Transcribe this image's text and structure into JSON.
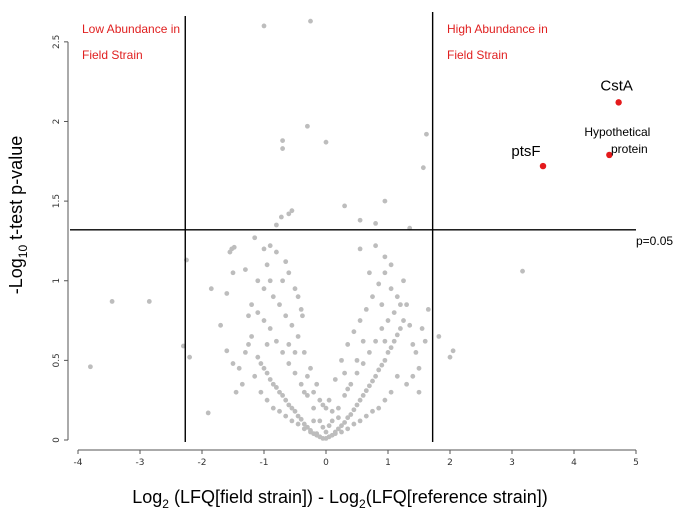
{
  "chart_data": {
    "type": "scatter",
    "title": "",
    "xlabel": {
      "prefix": "Log",
      "sub": "2",
      "mid": " (LFQ[field strain]) - Log",
      "sub2": "2",
      "suffix": "(LFQ[reference strain])"
    },
    "ylabel": {
      "prefix": "-Log",
      "sub": "10",
      "suffix": " t-test p-value"
    },
    "xlim": [
      -4,
      5
    ],
    "ylim": [
      0,
      2.7
    ],
    "xticks": [
      "-4",
      "-3",
      "-2",
      "-1",
      "0",
      "1",
      "2",
      "3",
      "4",
      "5"
    ],
    "yticks": [
      "0",
      "0.5",
      "1",
      "1.5",
      "2",
      "2.5"
    ],
    "grid": false,
    "colors": {
      "background_points": "#bdbdbd",
      "highlight_points": "#e41a1c",
      "region_text": "#e02020",
      "lines": "#000000"
    },
    "thresholds": {
      "x_low": -2.27,
      "x_high": 1.72,
      "y": 1.32,
      "y_label": "p=0.05"
    },
    "region_labels": {
      "low": [
        "Low Abundance in",
        "Field Strain"
      ],
      "high": [
        "High Abundance in",
        "Field Strain"
      ]
    },
    "highlighted": [
      {
        "label": "CstA",
        "x": 4.72,
        "y": 2.12
      },
      {
        "label": "ptsF",
        "x": 3.5,
        "y": 1.72
      },
      {
        "label": "Hypothetical protein",
        "lines": [
          "Hypothetical",
          "protein"
        ],
        "x": 4.57,
        "y": 1.79
      }
    ],
    "points": [
      [
        -1.0,
        2.6
      ],
      [
        -0.25,
        2.63
      ],
      [
        -0.3,
        1.97
      ],
      [
        -0.7,
        1.88
      ],
      [
        -0.7,
        1.83
      ],
      [
        0.0,
        1.87
      ],
      [
        0.95,
        1.5
      ],
      [
        0.3,
        1.47
      ],
      [
        1.57,
        1.71
      ],
      [
        1.62,
        1.92
      ],
      [
        -0.55,
        1.44
      ],
      [
        -0.72,
        1.4
      ],
      [
        -0.8,
        1.35
      ],
      [
        -0.6,
        1.42
      ],
      [
        0.55,
        1.38
      ],
      [
        0.8,
        1.36
      ],
      [
        1.35,
        1.33
      ],
      [
        3.17,
        1.06
      ],
      [
        -3.8,
        0.46
      ],
      [
        -3.45,
        0.87
      ],
      [
        -2.85,
        0.87
      ],
      [
        -2.3,
        0.59
      ],
      [
        -2.2,
        0.52
      ],
      [
        -2.25,
        1.13
      ],
      [
        2.0,
        0.52
      ],
      [
        2.05,
        0.56
      ],
      [
        1.82,
        0.65
      ],
      [
        1.65,
        0.82
      ],
      [
        -1.9,
        0.17
      ],
      [
        -1.5,
        0.48
      ],
      [
        -1.3,
        1.07
      ],
      [
        -1.5,
        1.05
      ],
      [
        -1.6,
        0.92
      ],
      [
        -1.7,
        0.72
      ],
      [
        -1.85,
        0.95
      ],
      [
        -1.6,
        0.56
      ],
      [
        -1.15,
        1.27
      ],
      [
        -1.0,
        1.2
      ],
      [
        -1.55,
        1.18
      ],
      [
        -1.52,
        1.2
      ],
      [
        -1.48,
        1.21
      ],
      [
        -0.9,
        1.22
      ],
      [
        -0.8,
        1.18
      ],
      [
        -0.65,
        1.12
      ],
      [
        -0.6,
        1.05
      ],
      [
        -0.5,
        0.95
      ],
      [
        -0.45,
        0.9
      ],
      [
        -0.4,
        0.82
      ],
      [
        -0.38,
        0.78
      ],
      [
        0.55,
        1.2
      ],
      [
        0.8,
        1.22
      ],
      [
        0.95,
        1.15
      ],
      [
        1.05,
        0.95
      ],
      [
        1.15,
        0.9
      ],
      [
        1.25,
        1.0
      ],
      [
        1.3,
        0.85
      ],
      [
        1.35,
        0.72
      ],
      [
        1.4,
        0.6
      ],
      [
        1.45,
        0.55
      ],
      [
        1.5,
        0.45
      ],
      [
        1.55,
        0.7
      ],
      [
        1.6,
        0.62
      ],
      [
        -1.2,
        0.65
      ],
      [
        -1.25,
        0.6
      ],
      [
        -1.3,
        0.55
      ],
      [
        -1.1,
        0.52
      ],
      [
        -1.05,
        0.48
      ],
      [
        -1.0,
        0.45
      ],
      [
        -0.95,
        0.42
      ],
      [
        -0.9,
        0.38
      ],
      [
        -0.85,
        0.35
      ],
      [
        -0.8,
        0.33
      ],
      [
        -0.75,
        0.3
      ],
      [
        -0.7,
        0.28
      ],
      [
        -0.65,
        0.25
      ],
      [
        -0.6,
        0.22
      ],
      [
        -0.55,
        0.2
      ],
      [
        -0.5,
        0.18
      ],
      [
        -0.45,
        0.15
      ],
      [
        -0.4,
        0.13
      ],
      [
        -0.35,
        0.1
      ],
      [
        -0.3,
        0.08
      ],
      [
        -0.25,
        0.06
      ],
      [
        -0.2,
        0.04
      ],
      [
        -0.15,
        0.03
      ],
      [
        -0.1,
        0.02
      ],
      [
        -0.05,
        0.01
      ],
      [
        0.0,
        0.01
      ],
      [
        0.05,
        0.02
      ],
      [
        0.1,
        0.03
      ],
      [
        0.15,
        0.05
      ],
      [
        0.2,
        0.07
      ],
      [
        0.25,
        0.09
      ],
      [
        0.3,
        0.11
      ],
      [
        0.35,
        0.14
      ],
      [
        0.4,
        0.16
      ],
      [
        0.45,
        0.19
      ],
      [
        0.5,
        0.22
      ],
      [
        0.55,
        0.25
      ],
      [
        0.6,
        0.28
      ],
      [
        0.65,
        0.31
      ],
      [
        0.7,
        0.34
      ],
      [
        0.75,
        0.37
      ],
      [
        0.8,
        0.4
      ],
      [
        0.85,
        0.44
      ],
      [
        0.9,
        0.47
      ],
      [
        0.95,
        0.5
      ],
      [
        1.0,
        0.55
      ],
      [
        1.05,
        0.58
      ],
      [
        1.1,
        0.62
      ],
      [
        1.15,
        0.66
      ],
      [
        1.2,
        0.7
      ],
      [
        -1.2,
        0.85
      ],
      [
        -1.1,
        0.8
      ],
      [
        -1.0,
        0.75
      ],
      [
        -0.9,
        0.7
      ],
      [
        -0.8,
        0.62
      ],
      [
        -0.7,
        0.55
      ],
      [
        -0.6,
        0.48
      ],
      [
        -0.5,
        0.42
      ],
      [
        -0.4,
        0.35
      ],
      [
        -0.3,
        0.28
      ],
      [
        -0.2,
        0.2
      ],
      [
        -0.1,
        0.12
      ],
      [
        0.1,
        0.12
      ],
      [
        0.2,
        0.2
      ],
      [
        0.3,
        0.28
      ],
      [
        0.4,
        0.35
      ],
      [
        0.5,
        0.42
      ],
      [
        0.6,
        0.48
      ],
      [
        0.7,
        0.55
      ],
      [
        0.8,
        0.62
      ],
      [
        0.9,
        0.7
      ],
      [
        1.0,
        0.75
      ],
      [
        1.1,
        0.8
      ],
      [
        1.2,
        0.85
      ],
      [
        -1.0,
        0.95
      ],
      [
        -0.9,
        1.0
      ],
      [
        -0.85,
        0.9
      ],
      [
        -0.75,
        0.85
      ],
      [
        -0.65,
        0.78
      ],
      [
        -0.55,
        0.72
      ],
      [
        -0.45,
        0.65
      ],
      [
        -0.35,
        0.55
      ],
      [
        -0.25,
        0.45
      ],
      [
        -0.15,
        0.35
      ],
      [
        -0.05,
        0.22
      ],
      [
        0.05,
        0.25
      ],
      [
        0.15,
        0.38
      ],
      [
        0.25,
        0.5
      ],
      [
        0.35,
        0.6
      ],
      [
        0.45,
        0.68
      ],
      [
        0.55,
        0.75
      ],
      [
        0.65,
        0.82
      ],
      [
        0.75,
        0.9
      ],
      [
        0.85,
        0.98
      ],
      [
        0.95,
        1.05
      ],
      [
        1.05,
        1.1
      ],
      [
        -1.15,
        0.4
      ],
      [
        -1.05,
        0.3
      ],
      [
        -0.95,
        0.25
      ],
      [
        -0.85,
        0.2
      ],
      [
        -0.75,
        0.18
      ],
      [
        -0.65,
        0.15
      ],
      [
        -0.55,
        0.12
      ],
      [
        -0.45,
        0.1
      ],
      [
        -0.35,
        0.07
      ],
      [
        -0.25,
        0.05
      ],
      [
        -0.15,
        0.04
      ],
      [
        0.15,
        0.04
      ],
      [
        0.25,
        0.05
      ],
      [
        0.35,
        0.07
      ],
      [
        0.45,
        0.1
      ],
      [
        0.55,
        0.12
      ],
      [
        0.65,
        0.15
      ],
      [
        0.75,
        0.18
      ],
      [
        0.85,
        0.2
      ],
      [
        0.95,
        0.25
      ],
      [
        1.05,
        0.3
      ],
      [
        1.15,
        0.4
      ],
      [
        -1.35,
        0.35
      ],
      [
        -1.4,
        0.45
      ],
      [
        -1.45,
        0.3
      ],
      [
        1.3,
        0.35
      ],
      [
        1.4,
        0.4
      ],
      [
        1.5,
        0.3
      ],
      [
        -0.2,
        0.3
      ],
      [
        -0.1,
        0.25
      ],
      [
        0.0,
        0.2
      ],
      [
        0.1,
        0.18
      ],
      [
        -0.3,
        0.4
      ],
      [
        0.3,
        0.42
      ],
      [
        -0.6,
        0.6
      ],
      [
        0.6,
        0.62
      ],
      [
        -0.95,
        0.6
      ],
      [
        0.95,
        0.62
      ],
      [
        -1.1,
        1.0
      ],
      [
        -0.95,
        1.1
      ],
      [
        -0.7,
        1.0
      ],
      [
        0.7,
        1.05
      ],
      [
        0.9,
        0.85
      ],
      [
        1.25,
        0.75
      ],
      [
        -1.25,
        0.78
      ],
      [
        -0.5,
        0.55
      ],
      [
        0.5,
        0.5
      ],
      [
        -0.35,
        0.3
      ],
      [
        0.35,
        0.32
      ],
      [
        -0.2,
        0.12
      ],
      [
        0.2,
        0.14
      ],
      [
        0.0,
        0.05
      ],
      [
        -0.05,
        0.08
      ],
      [
        0.05,
        0.09
      ]
    ]
  }
}
